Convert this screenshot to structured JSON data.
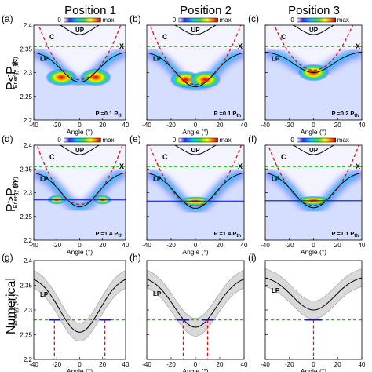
{
  "column_titles": [
    "Position 1",
    "Position 2",
    "Position 3"
  ],
  "row_labels": [
    "P<P",
    "P>P",
    "Numerical"
  ],
  "row_label_subscript": "th",
  "colorbar": {
    "min_label": "0",
    "max_label": "max"
  },
  "panel_labels": [
    "(a)",
    "(b)",
    "(c)",
    "(d)",
    "(e)",
    "(f)",
    "(g)",
    "(h)",
    "(i)"
  ],
  "curve_labels": {
    "upper": "UP",
    "lower": "LP",
    "cavity": "C",
    "exciton": "X"
  },
  "colors": {
    "exciton_line": "#22bb22",
    "cavity_line": "#dd1111",
    "polariton_line": "#000000",
    "condensate_line": "#1111cc",
    "band_fill": "#d9d9d9"
  },
  "chart_data": [
    {
      "type": "heatmap",
      "panel": "(a)",
      "position": "Position 1",
      "regime": "below threshold",
      "xlabel": "Angle (°)",
      "ylabel": "Energy (eV)",
      "xlim": [
        -40,
        40
      ],
      "ylim": [
        2.2,
        2.4
      ],
      "xticks": [
        -40,
        -20,
        0,
        20,
        40
      ],
      "yticks": [
        2.2,
        2.25,
        2.3,
        2.35,
        2.4
      ],
      "annotation_prefix": "P =0.1 P",
      "annotation_subscript": "th",
      "exciton_energy": 2.355,
      "lp_minimum": 2.28,
      "emission_peaks": [
        {
          "angle": -16,
          "energy": 2.29
        },
        {
          "angle": 14,
          "energy": 2.29
        }
      ]
    },
    {
      "type": "heatmap",
      "panel": "(b)",
      "position": "Position 2",
      "regime": "below threshold",
      "xlabel": "Angle (°)",
      "xlim": [
        -40,
        40
      ],
      "ylim": [
        2.2,
        2.4
      ],
      "xticks": [
        -40,
        -20,
        0,
        20,
        40
      ],
      "annotation_prefix": "P =0.1 P",
      "annotation_subscript": "th",
      "exciton_energy": 2.355,
      "lp_minimum": 2.27,
      "emission_peaks": [
        {
          "angle": -8,
          "energy": 2.285
        },
        {
          "angle": 8,
          "energy": 2.285
        }
      ]
    },
    {
      "type": "heatmap",
      "panel": "(c)",
      "position": "Position 3",
      "regime": "below threshold",
      "xlabel": "Angle (°)",
      "xlim": [
        -40,
        40
      ],
      "ylim": [
        2.2,
        2.4
      ],
      "xticks": [
        -40,
        -20,
        0,
        20,
        40
      ],
      "annotation_prefix": "P =0.2 P",
      "annotation_subscript": "th",
      "exciton_energy": 2.355,
      "lp_minimum": 2.3,
      "emission_peaks": [
        {
          "angle": 0,
          "energy": 2.3
        }
      ]
    },
    {
      "type": "heatmap",
      "panel": "(d)",
      "position": "Position 1",
      "regime": "above threshold",
      "xlabel": "Angle (°)",
      "ylabel": "Energy (eV)",
      "xlim": [
        -40,
        40
      ],
      "ylim": [
        2.2,
        2.4
      ],
      "xticks": [
        -40,
        -20,
        0,
        20,
        40
      ],
      "yticks": [
        2.2,
        2.25,
        2.3,
        2.35,
        2.4
      ],
      "annotation_prefix": "P =1.4 P",
      "annotation_subscript": "th",
      "exciton_energy": 2.355,
      "condensate_energy": 2.285,
      "emission_peaks": [
        {
          "angle": -20,
          "energy": 2.285
        },
        {
          "angle": 20,
          "energy": 2.285
        }
      ]
    },
    {
      "type": "heatmap",
      "panel": "(e)",
      "position": "Position 2",
      "regime": "above threshold",
      "xlabel": "Angle (°)",
      "xlim": [
        -40,
        40
      ],
      "ylim": [
        2.2,
        2.4
      ],
      "xticks": [
        -40,
        -20,
        0,
        20,
        40
      ],
      "annotation_prefix": "P =1.4 P",
      "annotation_subscript": "th",
      "exciton_energy": 2.355,
      "condensate_energy": 2.282,
      "emission_peaks": [
        {
          "angle": 0,
          "energy": 2.282
        }
      ]
    },
    {
      "type": "heatmap",
      "panel": "(f)",
      "position": "Position 3",
      "regime": "above threshold",
      "xlabel": "Angle (°)",
      "xlim": [
        -40,
        40
      ],
      "ylim": [
        2.2,
        2.4
      ],
      "xticks": [
        -40,
        -20,
        0,
        20,
        40
      ],
      "annotation_prefix": "P =1.1 P",
      "annotation_subscript": "th",
      "exciton_energy": 2.355,
      "condensate_energy": 2.283,
      "emission_peaks": [
        {
          "angle": 0,
          "energy": 2.283
        }
      ]
    },
    {
      "type": "line",
      "panel": "(g)",
      "position": "Position 1",
      "regime": "numerical",
      "xlabel": "Angle (°)",
      "ylabel": "Energy (eV)",
      "xlim": [
        -40,
        40
      ],
      "ylim": [
        2.2,
        2.4
      ],
      "xticks": [
        -40,
        -20,
        0,
        20,
        40
      ],
      "yticks": [
        2.2,
        2.25,
        2.3,
        2.35,
        2.4
      ],
      "lp_minimum": 2.255,
      "band_halfwidth": 0.018,
      "condensate_energy": 2.28,
      "condensate_angles": [
        -22,
        22
      ],
      "threshold_energy": 2.28
    },
    {
      "type": "line",
      "panel": "(h)",
      "position": "Position 2",
      "regime": "numerical",
      "xlabel": "Angle (°)",
      "xlim": [
        -40,
        40
      ],
      "ylim": [
        2.2,
        2.4
      ],
      "xticks": [
        -40,
        -20,
        0,
        20,
        40
      ],
      "lp_minimum": 2.265,
      "band_halfwidth": 0.018,
      "condensate_energy": 2.28,
      "condensate_angles": [
        -10,
        10
      ],
      "threshold_energy": 2.28
    },
    {
      "type": "line",
      "panel": "(i)",
      "position": "Position 3",
      "regime": "numerical",
      "xlabel": "Angle (°)",
      "xlim": [
        -40,
        40
      ],
      "ylim": [
        2.2,
        2.4
      ],
      "xticks": [
        -40,
        -20,
        0,
        20,
        40
      ],
      "lp_minimum": 2.3,
      "band_halfwidth": 0.018,
      "condensate_energy": 2.28,
      "condensate_angles": [
        0
      ],
      "threshold_energy": 2.28
    }
  ]
}
